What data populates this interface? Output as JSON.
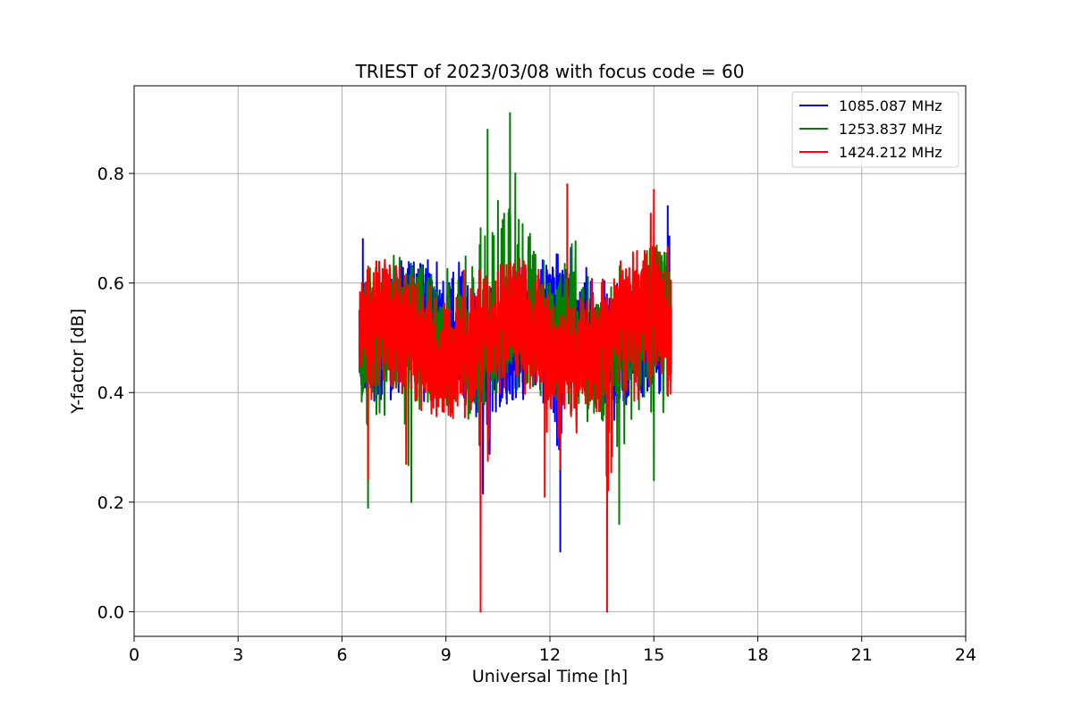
{
  "chart_data": {
    "type": "line",
    "title": "TRIEST of 2023/03/08 with focus code = 60",
    "xlabel": "Universal Time [h]",
    "ylabel": "Y-factor [dB]",
    "xlim": [
      0,
      24
    ],
    "ylim": [
      -0.045,
      0.96
    ],
    "xticks": [
      0,
      3,
      6,
      9,
      12,
      15,
      18,
      21,
      24
    ],
    "yticks": [
      0.0,
      0.2,
      0.4,
      0.6,
      0.8
    ],
    "ytick_labels": [
      "0.0",
      "0.2",
      "0.4",
      "0.6",
      "0.8"
    ],
    "grid": true,
    "legend_position": "top-right",
    "x_range_of_data": [
      6.5,
      15.5
    ],
    "series": [
      {
        "name": "1085.087 MHz",
        "color": "#0000ff",
        "x": [
          6.5,
          6.6,
          6.75,
          7.0,
          7.5,
          8.0,
          8.5,
          9.0,
          9.5,
          9.95,
          10.0,
          10.5,
          11.0,
          11.5,
          12.0,
          12.25,
          12.3,
          12.5,
          13.0,
          13.5,
          14.0,
          14.5,
          15.0,
          15.4,
          15.5
        ],
        "values": [
          0.55,
          0.68,
          0.45,
          0.5,
          0.52,
          0.6,
          0.5,
          0.55,
          0.52,
          0.45,
          0.0,
          0.55,
          0.5,
          0.56,
          0.5,
          0.6,
          0.11,
          0.55,
          0.6,
          0.55,
          0.5,
          0.55,
          0.52,
          0.74,
          0.55
        ],
        "envelope_low": [
          0.45,
          0.4,
          0.35,
          0.38,
          0.35,
          0.35,
          0.35,
          0.4,
          0.35,
          0.3,
          0.0,
          0.35,
          0.35,
          0.35,
          0.3,
          0.11,
          0.11,
          0.3,
          0.35,
          0.35,
          0.35,
          0.35,
          0.35,
          0.35,
          0.4
        ],
        "envelope_high": [
          0.65,
          0.68,
          0.62,
          0.67,
          0.68,
          0.7,
          0.66,
          0.65,
          0.68,
          0.66,
          0.66,
          0.7,
          0.7,
          0.7,
          0.65,
          0.68,
          0.68,
          0.72,
          0.72,
          0.7,
          0.68,
          0.67,
          0.7,
          0.74,
          0.7
        ]
      },
      {
        "name": "1253.837 MHz",
        "color": "#008000",
        "x": [
          6.5,
          6.75,
          7.0,
          7.5,
          8.0,
          8.5,
          9.0,
          9.5,
          10.0,
          10.2,
          10.5,
          10.85,
          11.0,
          11.5,
          12.0,
          12.5,
          13.0,
          13.5,
          14.0,
          14.5,
          15.0,
          15.5
        ],
        "values": [
          0.5,
          0.19,
          0.45,
          0.5,
          0.2,
          0.5,
          0.55,
          0.6,
          0.7,
          0.88,
          0.75,
          0.91,
          0.8,
          0.65,
          0.6,
          0.55,
          0.55,
          0.5,
          0.16,
          0.5,
          0.24,
          0.5
        ],
        "envelope_low": [
          0.4,
          0.19,
          0.3,
          0.3,
          0.2,
          0.3,
          0.35,
          0.35,
          0.35,
          0.4,
          0.4,
          0.4,
          0.35,
          0.35,
          0.35,
          0.3,
          0.3,
          0.3,
          0.16,
          0.3,
          0.23,
          0.35
        ],
        "envelope_high": [
          0.65,
          0.62,
          0.65,
          0.65,
          0.65,
          0.66,
          0.67,
          0.7,
          0.84,
          0.88,
          0.85,
          0.91,
          0.85,
          0.78,
          0.72,
          0.75,
          0.72,
          0.68,
          0.7,
          0.7,
          0.72,
          0.7
        ]
      },
      {
        "name": "1424.212 MHz",
        "color": "#ff0000",
        "x": [
          6.5,
          6.75,
          7.0,
          7.5,
          7.85,
          8.0,
          8.5,
          9.0,
          9.5,
          9.9,
          10.0,
          10.5,
          11.0,
          11.5,
          11.85,
          12.0,
          12.3,
          12.5,
          13.0,
          13.5,
          13.65,
          14.0,
          14.5,
          15.0,
          15.5
        ],
        "values": [
          0.55,
          0.24,
          0.5,
          0.5,
          0.27,
          0.6,
          0.5,
          0.55,
          0.5,
          0.55,
          0.0,
          0.55,
          0.5,
          0.55,
          0.21,
          0.5,
          0.26,
          0.78,
          0.55,
          0.6,
          0.0,
          0.55,
          0.5,
          0.77,
          0.55
        ],
        "envelope_low": [
          0.4,
          0.24,
          0.35,
          0.35,
          0.27,
          0.3,
          0.35,
          0.3,
          0.3,
          0.3,
          0.0,
          0.33,
          0.3,
          0.3,
          0.21,
          0.3,
          0.26,
          0.3,
          0.35,
          0.3,
          0.0,
          0.3,
          0.3,
          0.35,
          0.4
        ],
        "envelope_high": [
          0.64,
          0.63,
          0.64,
          0.65,
          0.64,
          0.63,
          0.66,
          0.64,
          0.68,
          0.71,
          0.68,
          0.67,
          0.68,
          0.68,
          0.68,
          0.66,
          0.68,
          0.78,
          0.72,
          0.73,
          0.7,
          0.68,
          0.72,
          0.77,
          0.68
        ]
      }
    ]
  }
}
